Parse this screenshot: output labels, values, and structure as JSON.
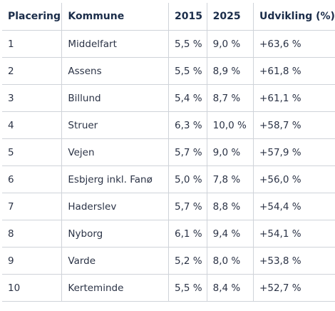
{
  "table": {
    "headers": [
      "Placering",
      "Kommune",
      "2015",
      "2025",
      "Udvikling (%)"
    ],
    "rows": [
      [
        "1",
        "Middelfart",
        "5,5 %",
        "9,0 %",
        "+63,6 %"
      ],
      [
        "2",
        "Assens",
        "5,5 %",
        "8,9 %",
        "+61,8 %"
      ],
      [
        "3",
        "Billund",
        "5,4 %",
        "8,7 %",
        "+61,1 %"
      ],
      [
        "4",
        "Struer",
        "6,3 %",
        "10,0 %",
        "+58,7 %"
      ],
      [
        "5",
        "Vejen",
        "5,7 %",
        "9,0 %",
        "+57,9 %"
      ],
      [
        "6",
        "Esbjerg inkl. Fanø",
        "5,0 %",
        "7,8 %",
        "+56,0 %"
      ],
      [
        "7",
        "Haderslev",
        "5,7 %",
        "8,8 %",
        "+54,4 %"
      ],
      [
        "8",
        "Nyborg",
        "6,1 %",
        "9,4 %",
        "+54,1 %"
      ],
      [
        "9",
        "Varde",
        "5,2 %",
        "8,0 %",
        "+53,8 %"
      ],
      [
        "10",
        "Kerteminde",
        "5,5 %",
        "8,4 %",
        "+52,7 %"
      ]
    ]
  }
}
